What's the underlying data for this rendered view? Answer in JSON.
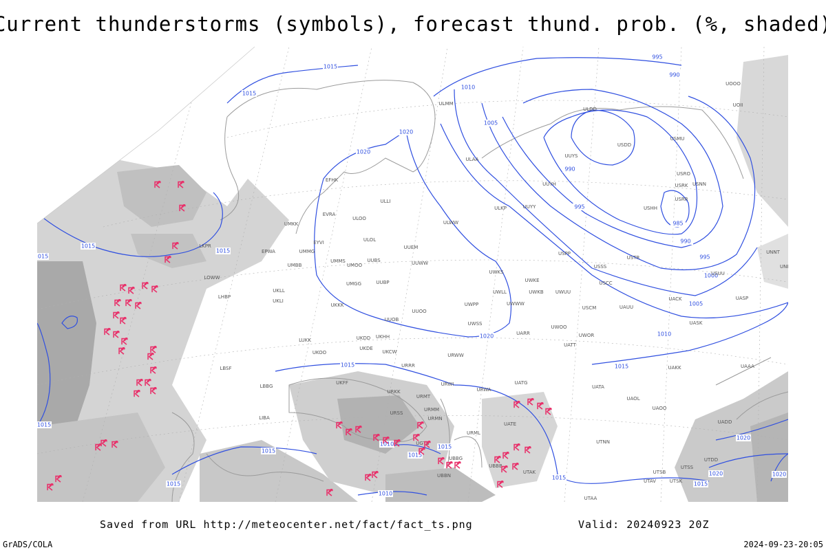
{
  "title": "Current thunderstorms (symbols), forecast thund. prob. (%, shaded)",
  "isobar_labels": [
    1015,
    1015,
    1010,
    1005,
    1020,
    1020,
    995,
    990,
    990,
    995,
    985,
    990,
    995,
    1000,
    1005,
    1010,
    1015,
    1015,
    1015,
    1020,
    1015,
    1015,
    1015,
    1015,
    1010,
    1015,
    1015,
    1015,
    1010,
    1015,
    1020,
    1020,
    1020,
    1015
  ],
  "stations": [
    "EFHK",
    "ULLI",
    "ULOO",
    "EVRA",
    "UMKK",
    "EYVI",
    "ULOL",
    "UMMG",
    "EPWA",
    "UUEM",
    "UMMS",
    "UMOO",
    "UUBS",
    "UUWW",
    "UMBB",
    "UMGG",
    "UUBP",
    "UKLL",
    "UKLI",
    "LHBP",
    "UKKK",
    "UUOO",
    "UWPP",
    "UUOB",
    "UWSS",
    "UKHH",
    "UKDD",
    "UKDE",
    "LUKK",
    "UKOO",
    "UKCW",
    "URRR",
    "URWW",
    "LBSF",
    "UKFF",
    "URKK",
    "URSS",
    "URMM",
    "URMN",
    "URMT",
    "URWI",
    "URWA",
    "UATG",
    "URML",
    "UATE",
    "ULWW",
    "ULKP",
    "UUYY",
    "ULAA",
    "ULMM",
    "UUYH",
    "UUYS",
    "USPP",
    "USSS",
    "USCC",
    "USTR",
    "USCM",
    "UAUU",
    "UWOO",
    "UARR",
    "UATT",
    "UWOR",
    "UWKE",
    "UWKB",
    "UWUU",
    "UWWW",
    "UWLL",
    "UWKS",
    "UATA",
    "UAOL",
    "UAOO",
    "UAKK",
    "UAAA",
    "UADD",
    "USUU",
    "UACK",
    "UASP",
    "UASK",
    "USDD",
    "USMU",
    "USRO",
    "USRK",
    "USRR",
    "USNN",
    "USHH",
    "UOOO",
    "UOII",
    "ULDD",
    "UNNT",
    "UNBB",
    "UTNN",
    "UTAA",
    "UTAK",
    "UTSB",
    "UTSS",
    "UTSK",
    "UTAV",
    "UTDD",
    "UBBN",
    "UBBG",
    "UGTB",
    "UBBB",
    "LBBG",
    "LIBA",
    "LOWW",
    "LKPR"
  ],
  "footer": {
    "source": "Saved from URL http://meteocenter.net/fact/fact_ts.png",
    "valid": "Valid: 20240923 20Z",
    "software": "GrADS/COLA",
    "timestamp": "2024-09-23-20:05"
  }
}
